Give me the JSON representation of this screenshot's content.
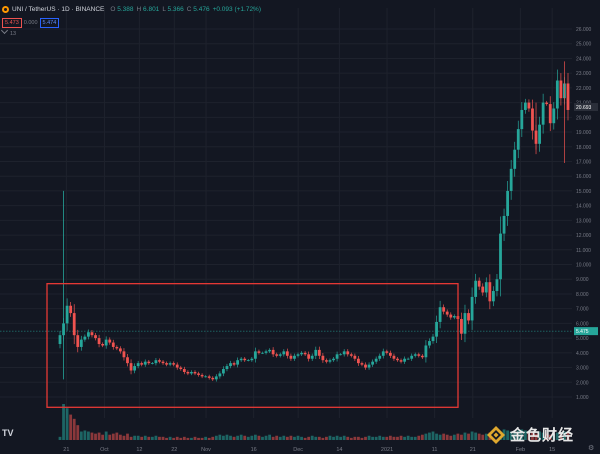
{
  "header": {
    "title": "UNI / TetherUS · 1D · BINANCE",
    "ohlc": [
      {
        "k": "O",
        "v": "5.388"
      },
      {
        "k": "H",
        "v": "6.801"
      },
      {
        "k": "L",
        "v": "5.366"
      },
      {
        "k": "C",
        "v": "5.476"
      }
    ],
    "change": "+0.093 (+1.72%)"
  },
  "price_boxes": {
    "sell": "5.473",
    "spread": "0.000",
    "buy": "5.474"
  },
  "volume_label": "13",
  "colors": {
    "up": "#26a69a",
    "down": "#ef5350",
    "highlight_box": "#e53935",
    "background": "#131722"
  },
  "chart_data": {
    "type": "candlestick",
    "title": "UNI / TetherUS · 1D · BINANCE",
    "y_ticks": [
      "1.000",
      "2.000",
      "3.000",
      "4.000",
      "5.000",
      "6.000",
      "7.000",
      "8.000",
      "9.000",
      "10.000",
      "11.000",
      "12.000",
      "13.000",
      "14.000",
      "15.000",
      "16.000",
      "17.000",
      "18.000",
      "19.000",
      "20.000",
      "21.000",
      "22.000",
      "23.000",
      "24.000",
      "25.000",
      "26.000"
    ],
    "x_ticks": [
      "21",
      "Oct",
      "12",
      "22",
      "Nov",
      "16",
      "Dec",
      "14",
      "2021",
      "11",
      "21",
      "Feb",
      "15"
    ],
    "price_tags": [
      {
        "label": "5.475",
        "value": 5.475
      },
      {
        "label": "20.693",
        "value": 20.7
      }
    ],
    "annotation": {
      "type": "rectangle",
      "label": "highlight",
      "x_range": [
        "Sep 17",
        "Jan 3"
      ],
      "y_range": [
        0.3,
        8.7
      ]
    },
    "series": [
      {
        "close": [
          5.2,
          6.0,
          7.2,
          6.7,
          5.2,
          4.4,
          4.9,
          5.1,
          5.4,
          5.2,
          5.0,
          4.6,
          4.5,
          4.9,
          4.7,
          4.4,
          4.3,
          4.1,
          3.7,
          3.3,
          2.8,
          3.1,
          3.3,
          3.2,
          3.4,
          3.3,
          3.3,
          3.5,
          3.4,
          3.3,
          3.2,
          3.3,
          3.2,
          3.0,
          2.9,
          2.7,
          2.6,
          2.7,
          2.6,
          2.5,
          2.4,
          2.4,
          2.3,
          2.2,
          2.4,
          2.6,
          2.9,
          3.1,
          3.3,
          3.2,
          3.5,
          3.6,
          3.5,
          3.5,
          3.6,
          4.1,
          4.0,
          4.0,
          4.1,
          4.2,
          3.9,
          3.8,
          3.9,
          4.1,
          3.8,
          3.6,
          3.8,
          3.9,
          4.0,
          3.9,
          3.6,
          3.8,
          4.2,
          3.8,
          3.5,
          3.4,
          3.5,
          3.6,
          3.9,
          3.9,
          4.1,
          3.9,
          3.8,
          3.6,
          3.3,
          3.2,
          3.0,
          3.2,
          3.4,
          3.6,
          3.8,
          4.1,
          4.0,
          3.8,
          3.6,
          3.5,
          3.4,
          3.6,
          3.6,
          3.8,
          3.9,
          3.8,
          3.7,
          4.5,
          4.8,
          5.1,
          6.1,
          7.1,
          6.8,
          6.6,
          6.4,
          6.5,
          6.3,
          5.3,
          6.7,
          6.2,
          7.8,
          8.9,
          8.5,
          8.1,
          8.8,
          7.5,
          8.2,
          9.0,
          12.1,
          13.3,
          15.0,
          16.5,
          17.8,
          19.2,
          20.5,
          21.0,
          20.6,
          19.1,
          18.2,
          19.5,
          21.0,
          20.9,
          19.6,
          20.6,
          22.5,
          21.3,
          22.3,
          20.5
        ]
      }
    ],
    "volume": [
      3,
      34,
      30,
      24,
      20,
      14,
      8,
      9,
      8,
      7,
      6,
      7,
      5,
      8,
      5,
      6,
      7,
      5,
      4,
      6,
      3,
      4,
      4,
      3,
      4,
      3,
      3,
      4,
      3,
      3,
      2,
      3,
      2,
      3,
      2,
      3,
      2,
      2,
      3,
      2,
      2,
      3,
      2,
      3,
      4,
      5,
      4,
      5,
      4,
      3,
      4,
      5,
      4,
      3,
      4,
      5,
      4,
      3,
      4,
      5,
      3,
      4,
      3,
      4,
      3,
      4,
      3,
      4,
      3,
      2,
      3,
      4,
      3,
      3,
      2,
      3,
      4,
      3,
      4,
      3,
      4,
      3,
      2,
      3,
      3,
      2,
      3,
      4,
      3,
      3,
      4,
      3,
      3,
      4,
      3,
      3,
      4,
      3,
      4,
      3,
      3,
      4,
      5,
      6,
      7,
      8,
      6,
      5,
      6,
      5,
      4,
      5,
      6,
      5,
      7,
      6,
      8,
      7,
      6,
      5,
      6,
      7,
      8,
      9,
      8,
      10,
      9,
      8,
      7,
      9,
      10,
      9,
      8,
      7,
      6,
      8,
      7,
      6,
      5,
      6,
      7,
      6,
      8,
      7
    ]
  },
  "watermark": {
    "text": "金色财经"
  }
}
